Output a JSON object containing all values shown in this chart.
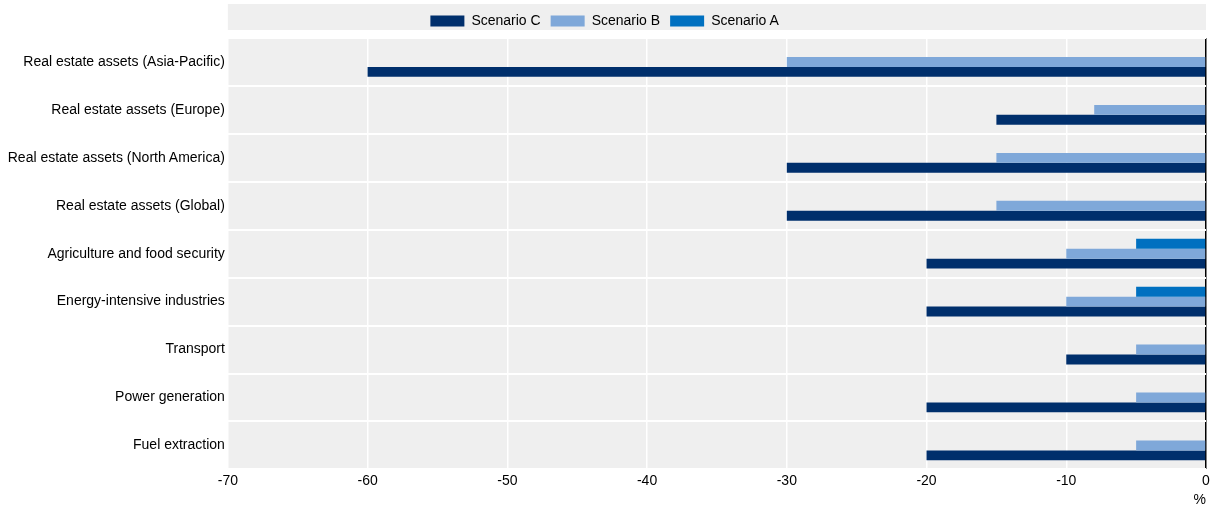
{
  "chart_data": {
    "type": "bar",
    "orientation": "horizontal",
    "xlabel": "%",
    "categories": [
      "Real estate assets (Asia-Pacific)",
      "Real estate assets (Europe)",
      "Real estate assets (North America)",
      "Real estate assets (Global)",
      "Agriculture and food security",
      "Energy-intensive industries",
      "Transport",
      "Power generation",
      "Fuel extraction"
    ],
    "series": [
      {
        "name": "Scenario A",
        "color": "#0070c0",
        "values": [
          null,
          null,
          null,
          null,
          -5,
          -5,
          null,
          null,
          null
        ]
      },
      {
        "name": "Scenario B",
        "color": "#7fa8d9",
        "values": [
          -30,
          -8,
          -15,
          -15,
          -10,
          -10,
          -5,
          -5,
          -5
        ]
      },
      {
        "name": "Scenario C",
        "color": "#002f6c",
        "values": [
          -60,
          -15,
          -30,
          -30,
          -20,
          -20,
          -10,
          -20,
          -20
        ]
      }
    ],
    "xlim": [
      -70,
      0
    ],
    "xticks": [
      -70,
      -60,
      -50,
      -40,
      -30,
      -20,
      -10,
      0
    ],
    "grid": true,
    "legend": "top"
  }
}
